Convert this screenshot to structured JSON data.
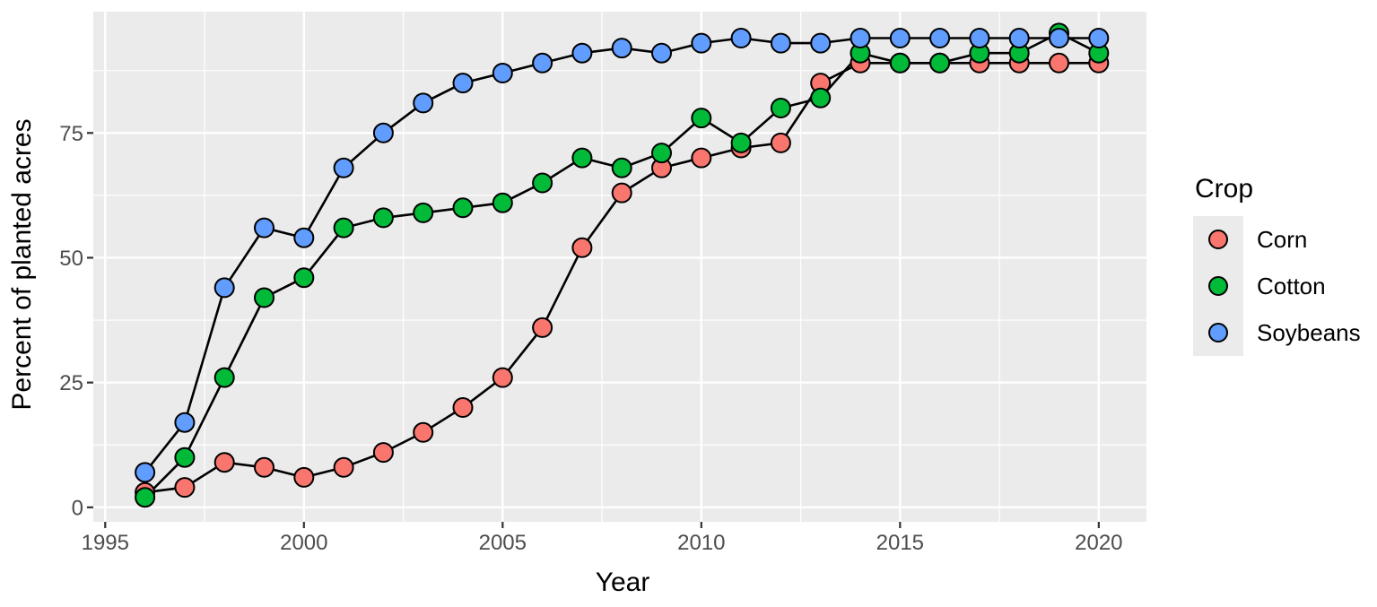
{
  "figure": {
    "background": "#FFFFFF",
    "panel_background": "#EBEBEB",
    "gridline_color": "#FFFFFF",
    "tick_mark_color": "#333333",
    "tick_label_color": "#4D4D4D",
    "axis_title_color": "#000000"
  },
  "chart_data": {
    "type": "line",
    "title": "",
    "xlabel": "Year",
    "ylabel": "Percent of planted acres",
    "legend_title": "Crop",
    "legend_position": "right",
    "grid": true,
    "marker": "filled-circle-black-outline",
    "line_color": "#000000",
    "x": [
      1996,
      1997,
      1998,
      1999,
      2000,
      2001,
      2002,
      2003,
      2004,
      2005,
      2006,
      2007,
      2008,
      2009,
      2010,
      2011,
      2012,
      2013,
      2014,
      2015,
      2016,
      2017,
      2018,
      2019,
      2020
    ],
    "x_ticks": [
      1995,
      2000,
      2005,
      2010,
      2015,
      2020
    ],
    "x_minor_ticks": [
      1997.5,
      2002.5,
      2007.5,
      2012.5,
      2017.5
    ],
    "y_ticks": [
      0,
      25,
      50,
      75
    ],
    "y_minor_ticks": [
      12.5,
      37.5,
      62.5,
      87.5
    ],
    "xlim": [
      1994.7,
      2021.2
    ],
    "ylim": [
      -2.9,
      99.3
    ],
    "series": [
      {
        "name": "Corn",
        "color": "#F8766D",
        "values": [
          3,
          4,
          9,
          8,
          6,
          8,
          11,
          15,
          20,
          26,
          36,
          52,
          63,
          68,
          70,
          72,
          73,
          85,
          89,
          89,
          89,
          89,
          89,
          89,
          89
        ]
      },
      {
        "name": "Cotton",
        "color": "#00BA38",
        "values": [
          2,
          10,
          26,
          42,
          46,
          56,
          58,
          59,
          60,
          61,
          65,
          70,
          68,
          71,
          78,
          73,
          80,
          82,
          91,
          89,
          89,
          91,
          91,
          95,
          91
        ]
      },
      {
        "name": "Soybeans",
        "color": "#619CFF",
        "values": [
          7,
          17,
          44,
          56,
          54,
          68,
          75,
          81,
          85,
          87,
          89,
          91,
          92,
          91,
          93,
          94,
          93,
          93,
          94,
          94,
          94,
          94,
          94,
          94,
          94
        ]
      }
    ]
  }
}
